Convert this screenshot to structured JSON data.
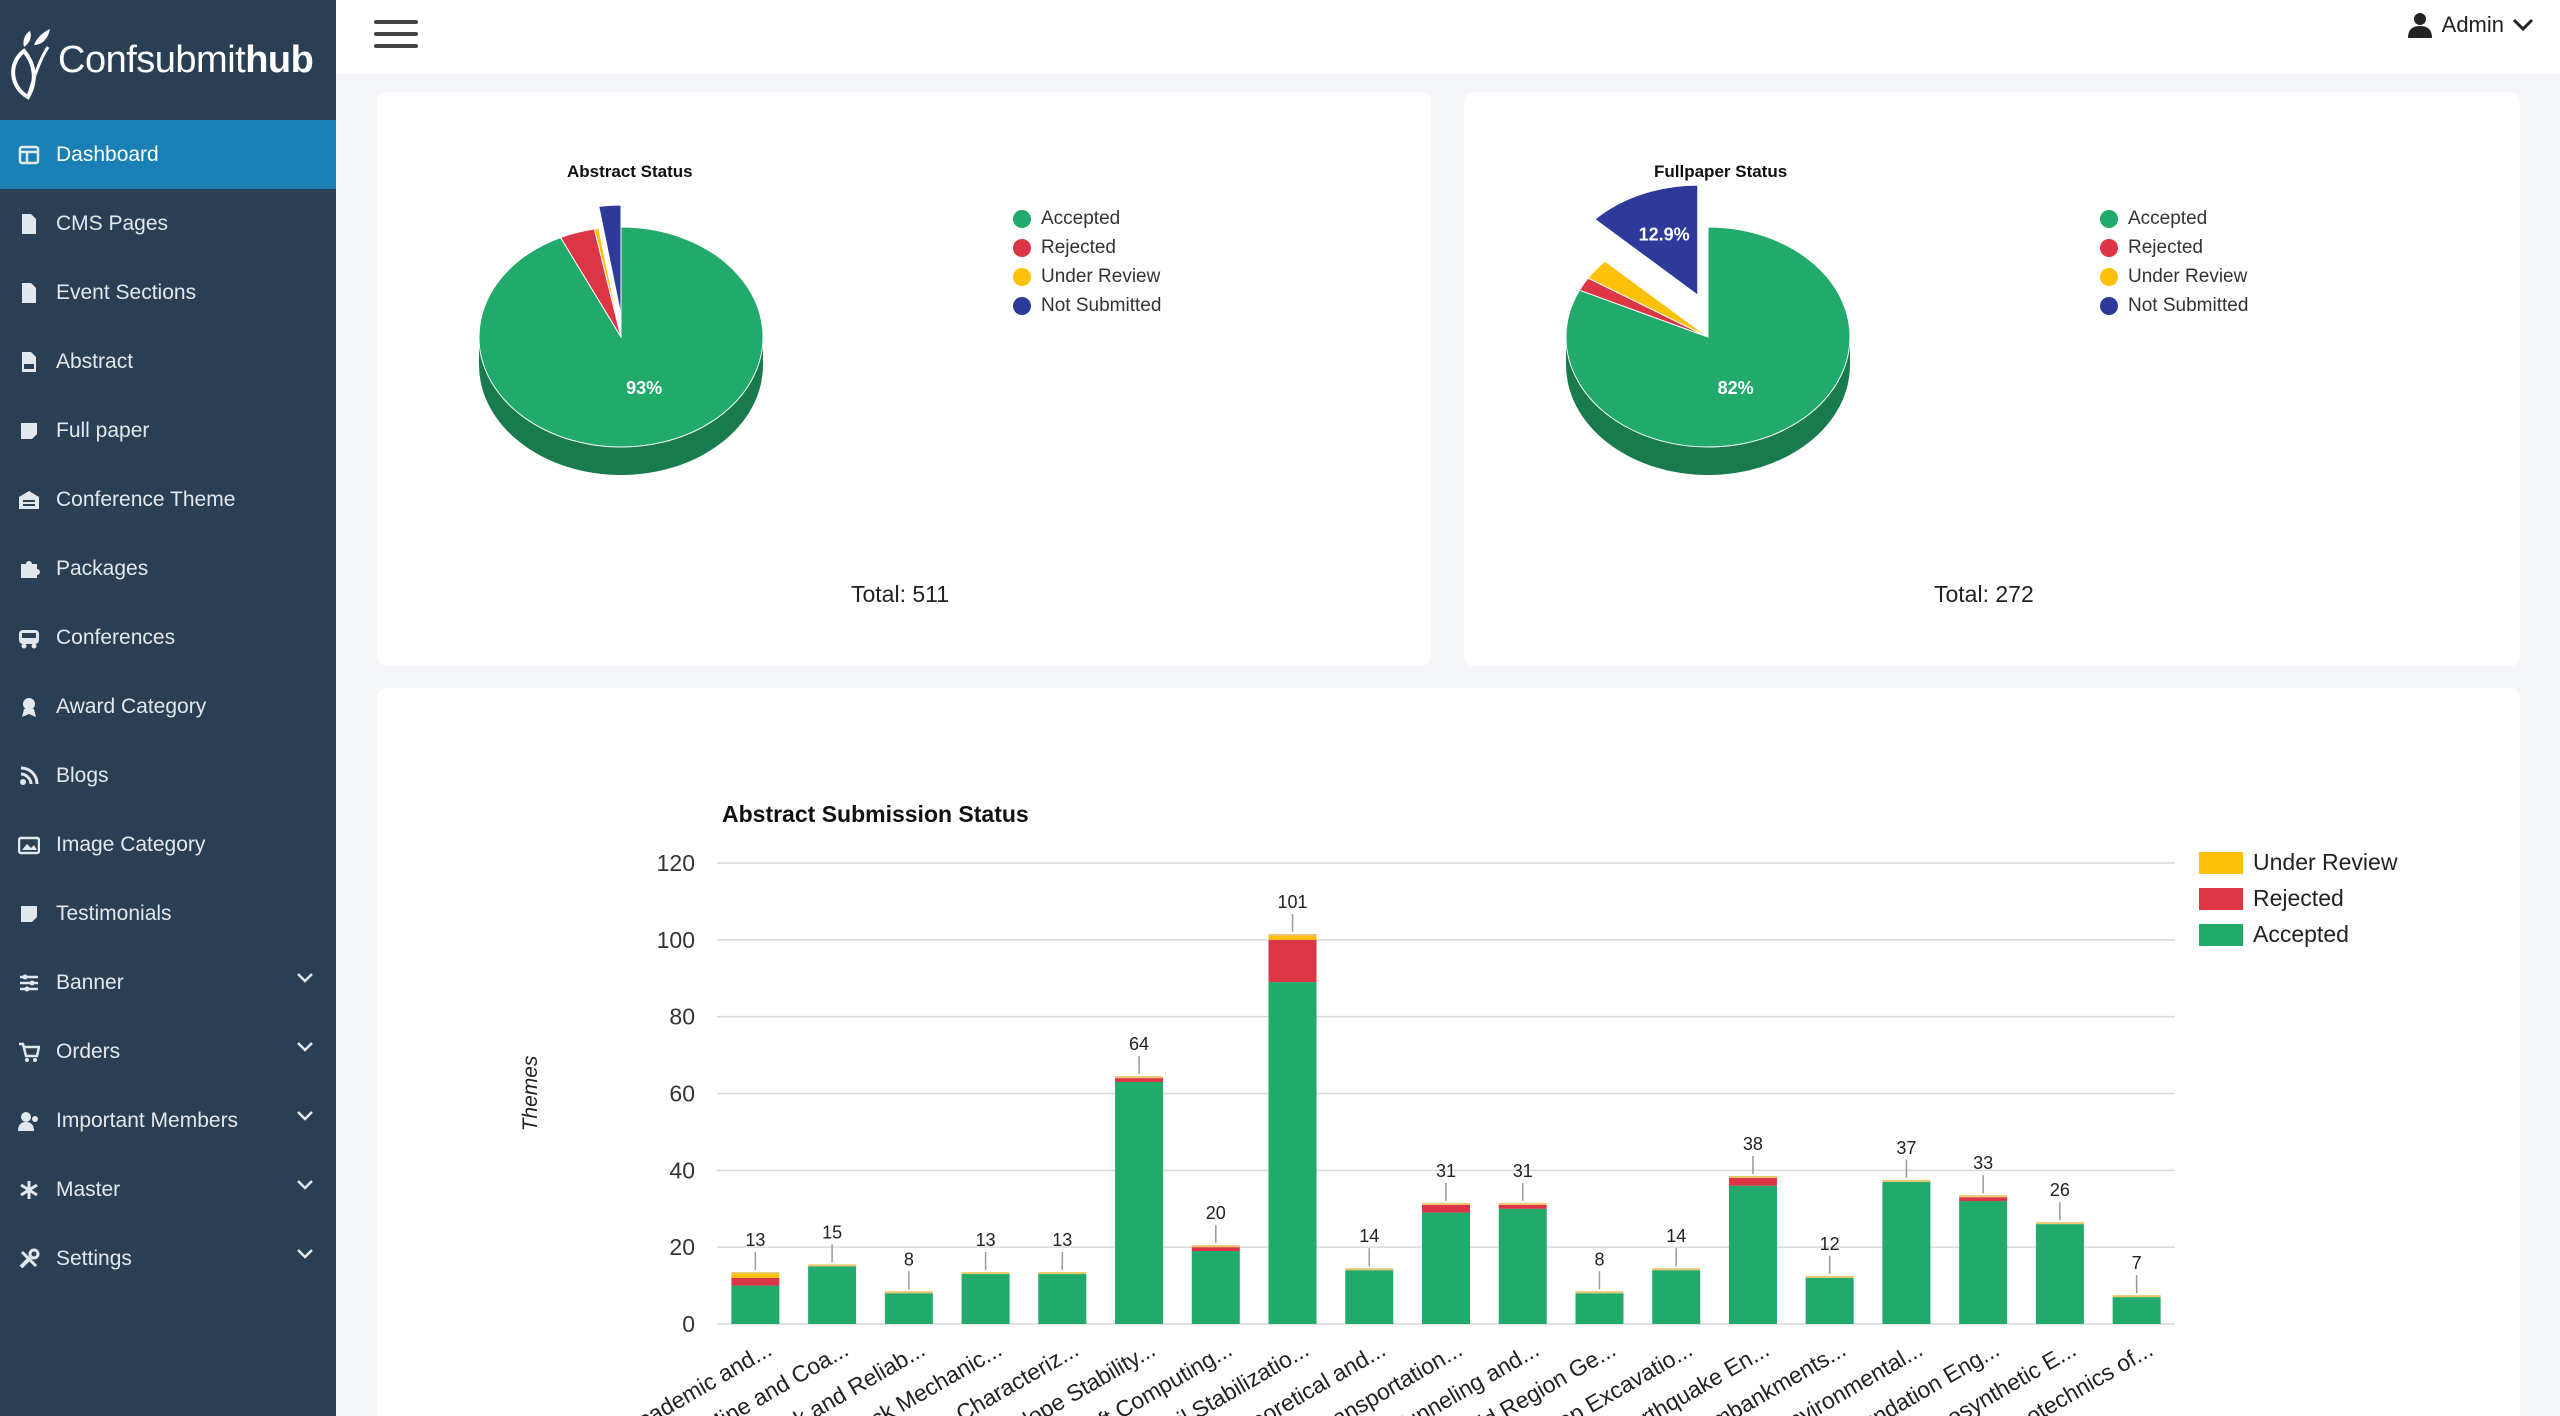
{
  "brand": {
    "name_light": "Confsubmit",
    "name_bold": "hub"
  },
  "sidebar": {
    "items": [
      {
        "label": "Dashboard",
        "icon": "dashboard-icon",
        "active": true,
        "chevron": false
      },
      {
        "label": "CMS Pages",
        "icon": "page-icon",
        "chevron": false
      },
      {
        "label": "Event Sections",
        "icon": "page-icon",
        "chevron": false
      },
      {
        "label": "Abstract",
        "icon": "pdf-icon",
        "chevron": false
      },
      {
        "label": "Full paper",
        "icon": "note-icon",
        "chevron": false
      },
      {
        "label": "Conference Theme",
        "icon": "warehouse-icon",
        "chevron": false
      },
      {
        "label": "Packages",
        "icon": "puzzle-icon",
        "chevron": false
      },
      {
        "label": "Conferences",
        "icon": "bus-icon",
        "chevron": false
      },
      {
        "label": "Award Category",
        "icon": "award-icon",
        "chevron": false
      },
      {
        "label": "Blogs",
        "icon": "blog-icon",
        "chevron": false
      },
      {
        "label": "Image Category",
        "icon": "image-icon",
        "chevron": false
      },
      {
        "label": "Testimonials",
        "icon": "note-icon",
        "chevron": false
      },
      {
        "label": "Banner",
        "icon": "sliders-icon",
        "chevron": true
      },
      {
        "label": "Orders",
        "icon": "cart-icon",
        "chevron": true
      },
      {
        "label": "Important Members",
        "icon": "users-icon",
        "chevron": true
      },
      {
        "label": "Master",
        "icon": "asterisk-icon",
        "chevron": true
      },
      {
        "label": "Settings",
        "icon": "tools-icon",
        "chevron": true
      }
    ]
  },
  "topbar": {
    "user_label": "Admin"
  },
  "colors": {
    "accepted": "#21aa6b",
    "rejected": "#dc3545",
    "under_review": "#ffc107",
    "not_submitted": "#2d3a9a",
    "sidebar": "#2a3f54",
    "active": "#1a7fb4"
  },
  "abstract_card": {
    "title": "Abstract Status",
    "total_label": "Total: 511",
    "legend": [
      "Accepted",
      "Rejected",
      "Under Review",
      "Not Submitted"
    ],
    "slice_labels": [
      "93%"
    ]
  },
  "fullpaper_card": {
    "title": "Fullpaper Status",
    "total_label": "Total: 272",
    "legend": [
      "Accepted",
      "Rejected",
      "Under Review",
      "Not Submitted"
    ],
    "slice_labels": [
      "82%",
      "12.9%"
    ]
  },
  "chart_data": [
    {
      "type": "pie",
      "title": "Abstract Status",
      "labels": [
        "Accepted",
        "Rejected",
        "Under Review",
        "Not Submitted"
      ],
      "values": [
        93,
        4,
        0.5,
        2.5
      ],
      "legend": "right"
    },
    {
      "type": "pie",
      "title": "Fullpaper Status",
      "labels": [
        "Accepted",
        "Rejected",
        "Under Review",
        "Not Submitted"
      ],
      "values": [
        82,
        2,
        3.1,
        12.9
      ],
      "legend": "right"
    },
    {
      "type": "bar",
      "stacked": true,
      "title": "Abstract Submission Status",
      "ylabel": "Themes",
      "xlabel": "",
      "ylim": [
        0,
        120
      ],
      "yticks": [
        0,
        20,
        40,
        60,
        80,
        100,
        120
      ],
      "grid": true,
      "legend": "top-right",
      "categories": [
        "Academic and...",
        "Mine and Coa...",
        "Risk and Reliab...",
        "Rock Mechanic...",
        "Characteriz...",
        "Slope Stability...",
        "Soft Computing...",
        "Soil Stabilizatio...",
        "Theoretical and...",
        "Transportation...",
        "Tunneling and...",
        "Cold Region Ge...",
        "Deep Excavatio...",
        "Earthquake En...",
        "Embankments...",
        "Environmental...",
        "Foundation Eng...",
        "Geosynthetic E...",
        "Geotechnics of..."
      ],
      "totals": [
        13,
        15,
        8,
        13,
        13,
        64,
        20,
        101,
        14,
        31,
        31,
        8,
        14,
        38,
        12,
        37,
        33,
        26,
        7
      ],
      "series": [
        {
          "name": "Accepted",
          "values": [
            10,
            15,
            8,
            13,
            13,
            63,
            19,
            89,
            14,
            29,
            30,
            8,
            14,
            36,
            12,
            37,
            32,
            26,
            7
          ]
        },
        {
          "name": "Rejected",
          "values": [
            2,
            0,
            0,
            0,
            0,
            1,
            1,
            11,
            0,
            2,
            1,
            0,
            0,
            2,
            0,
            0,
            1,
            0,
            0
          ]
        },
        {
          "name": "Under Review",
          "values": [
            1,
            0,
            0,
            0,
            0,
            0,
            0,
            1,
            0,
            0,
            0,
            0,
            0,
            0,
            0,
            0,
            0,
            0,
            0
          ]
        }
      ]
    }
  ]
}
